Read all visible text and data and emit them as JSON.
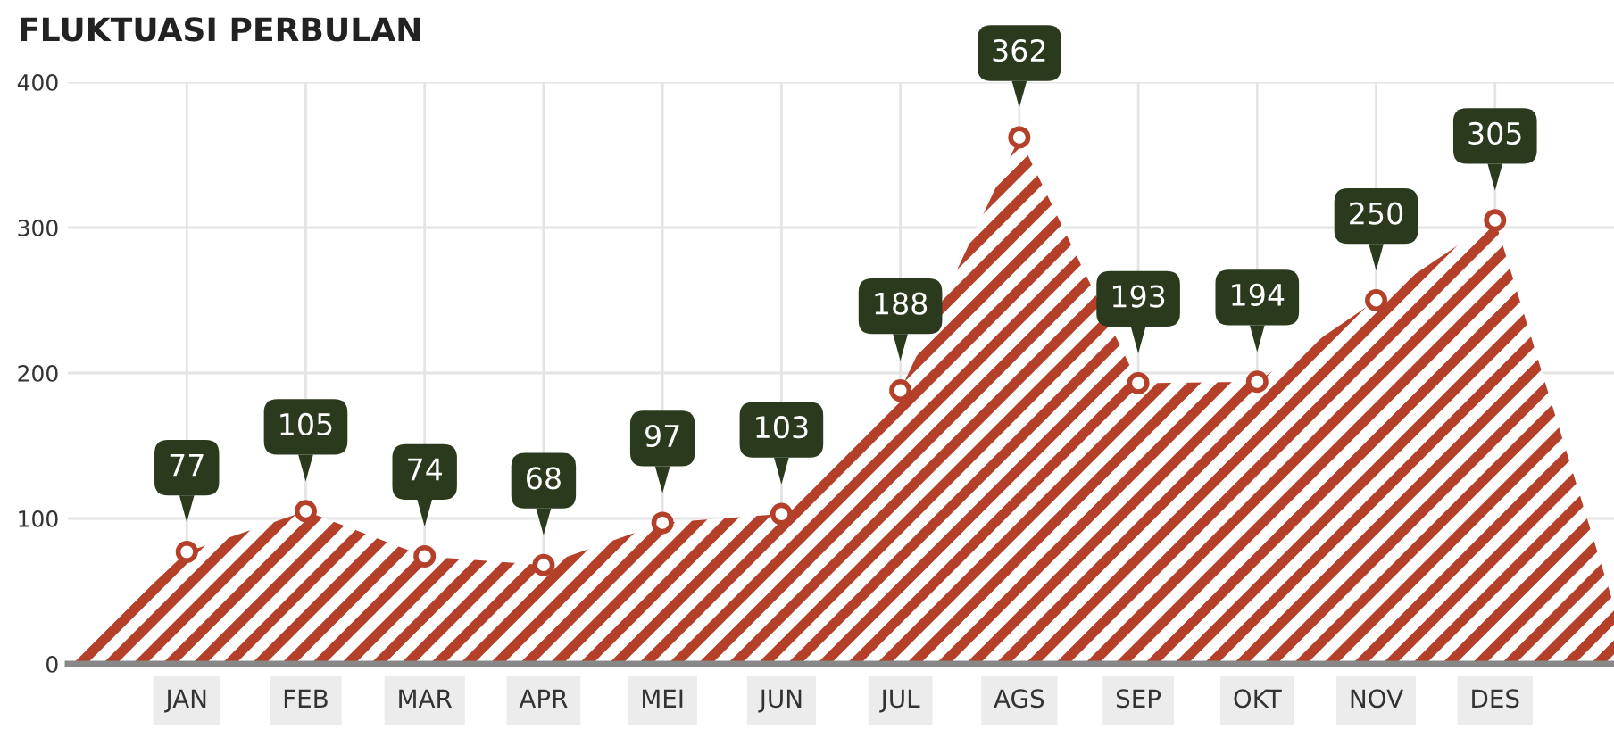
{
  "chart_data": {
    "type": "area",
    "title": "FLUKTUASI PERBULAN",
    "categories": [
      null,
      "JAN",
      "FEB",
      "MAR",
      "APR",
      "MEI",
      "JUN",
      "JUL",
      "AGS",
      "SEP",
      "OKT",
      "NOV",
      "DES",
      null
    ],
    "series": [
      {
        "color": "#b5402a",
        "values": [
          0,
          77,
          105,
          74,
          68,
          97,
          103,
          188,
          362,
          193,
          194,
          250,
          305,
          40
        ],
        "value_labels": [
          null,
          "77",
          "105",
          "74",
          "68",
          "97",
          "103",
          "188",
          "362",
          "193",
          "194",
          "250",
          "305",
          null
        ]
      }
    ],
    "ylim": [
      0,
      400
    ],
    "yticks": [
      0,
      100,
      200,
      300,
      400
    ],
    "grid": true,
    "marker": "circle",
    "legend": false
  }
}
